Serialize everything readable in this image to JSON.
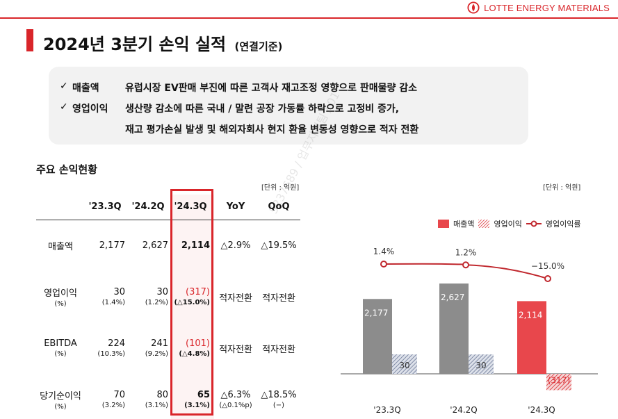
{
  "brand": {
    "name": "LOTTE ENERGY MATERIALS",
    "color": "#d9252a"
  },
  "title": {
    "main": "2024년 3분기 손익 실적",
    "sub": "(연결기준)"
  },
  "summary": [
    {
      "label": "매출액",
      "lines": [
        "유럽시장 EV판매 부진에 따른 고객사 재고조정 영향으로 판매물량 감소"
      ]
    },
    {
      "label": "영업이익",
      "lines": [
        "생산량 감소에 따른 국내 / 말련 공장 가동률 하락으로 고정비 증가,",
        "재고 평가손실 발생 및 해외자회사 현지 환율 변동성 영향으로 적자 전환"
      ]
    }
  ],
  "table": {
    "title": "주요 손익현황",
    "unit": "[단위 : 억원]",
    "headers": [
      "",
      "'23.3Q",
      "'24.2Q",
      "'24.3Q",
      "YoY",
      "QoQ"
    ],
    "rows": [
      {
        "item": "매출액",
        "item_sub": "",
        "q23_3": "2,177",
        "q23_3_sub": "",
        "q24_2": "2,627",
        "q24_2_sub": "",
        "q24_3": "2,114",
        "q24_3_sub": "",
        "yoy": "△2.9%",
        "yoy_sub": "",
        "qoq": "△19.5%",
        "qoq_sub": ""
      },
      {
        "item": "영업이익",
        "item_sub": "(%)",
        "q23_3": "30",
        "q23_3_sub": "(1.4%)",
        "q24_2": "30",
        "q24_2_sub": "(1.2%)",
        "q24_3": "(317)",
        "q24_3_sub": "(△15.0%)",
        "yoy": "적자전환",
        "yoy_sub": "",
        "qoq": "적자전환",
        "qoq_sub": ""
      },
      {
        "item": "EBITDA",
        "item_sub": "(%)",
        "q23_3": "224",
        "q23_3_sub": "(10.3%)",
        "q24_2": "241",
        "q24_2_sub": "(9.2%)",
        "q24_3": "(101)",
        "q24_3_sub": "(△4.8%)",
        "yoy": "적자전환",
        "yoy_sub": "",
        "qoq": "적자전환",
        "qoq_sub": ""
      },
      {
        "item": "당기순이익",
        "item_sub": "(%)",
        "q23_3": "70",
        "q23_3_sub": "(3.2%)",
        "q24_2": "80",
        "q24_2_sub": "(3.1%)",
        "q24_3": "65",
        "q24_3_sub": "(3.1%)",
        "yoy": "△6.3%",
        "yoy_sub": "(△0.1%p)",
        "qoq": "△18.5%",
        "qoq_sub": "(−)"
      }
    ]
  },
  "chart_data": {
    "type": "bar",
    "unit": "[단위 : 억원]",
    "categories": [
      "'23.3Q",
      "'24.2Q",
      "'24.3Q"
    ],
    "series": [
      {
        "name": "매출액",
        "values": [
          2177,
          2627,
          2114
        ],
        "labels": [
          "2,177",
          "2,627",
          "2,114"
        ]
      },
      {
        "name": "영업이익",
        "values": [
          30,
          30,
          -317
        ],
        "labels": [
          "30",
          "30",
          "(317)"
        ]
      },
      {
        "name": "영업이익률",
        "type": "line",
        "values": [
          1.4,
          1.2,
          -15.0
        ],
        "labels": [
          "1.4%",
          "1.2%",
          "−15.0%"
        ]
      }
    ],
    "colors": {
      "gray": "#8c8c8c",
      "red": "#e8474c",
      "hatch": "#8a93a8",
      "line": "#c0272d"
    },
    "legend": "top-right"
  }
}
